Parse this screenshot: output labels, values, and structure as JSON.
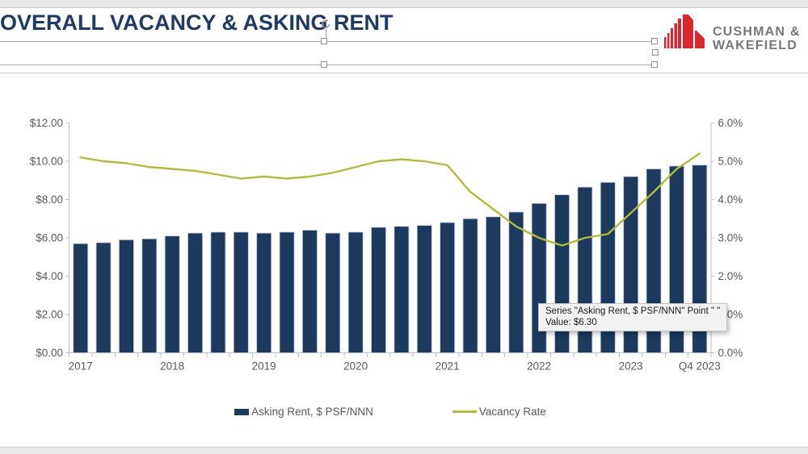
{
  "title": "OVERALL VACANCY & ASKING RENT",
  "logo": {
    "line1": "CUSHMAN &",
    "line2": "WAKEFIELD"
  },
  "tooltip": {
    "line1": "Series \"Asking Rent, $ PSF/NNN\" Point \" \"",
    "line2": "Value: $6.30"
  },
  "legend": {
    "items": [
      {
        "label": "Asking Rent, $ PSF/NNN",
        "swatch": "bar"
      },
      {
        "label": "Vacancy Rate",
        "swatch": "line"
      }
    ]
  },
  "colors": {
    "bar": "#1C3A5E",
    "bar_edge": "#bcc7d6",
    "line": "#B2BC35",
    "title": "#1F3A63",
    "logo_red": "#D7282F",
    "logo_gray": "#76777A",
    "axis_text": "#595959",
    "axis_line": "#bfbfbf"
  },
  "chart_data": {
    "type": "bar+line",
    "categories": [
      "2017 Q1",
      "2017 Q2",
      "2017 Q3",
      "2017 Q4",
      "2018 Q1",
      "2018 Q2",
      "2018 Q3",
      "2018 Q4",
      "2019 Q1",
      "2019 Q2",
      "2019 Q3",
      "2019 Q4",
      "2020 Q1",
      "2020 Q2",
      "2020 Q3",
      "2020 Q4",
      "2021 Q1",
      "2021 Q2",
      "2021 Q3",
      "2021 Q4",
      "2022 Q1",
      "2022 Q2",
      "2022 Q3",
      "2022 Q4",
      "2023 Q1",
      "2023 Q2",
      "2023 Q3",
      "2023 Q4"
    ],
    "series": [
      {
        "name": "Asking Rent, $ PSF/NNN",
        "type": "bar",
        "axis": "left",
        "color": "#1C3A5E",
        "values": [
          5.7,
          5.75,
          5.9,
          5.95,
          6.1,
          6.25,
          6.3,
          6.3,
          6.25,
          6.3,
          6.4,
          6.25,
          6.3,
          6.55,
          6.6,
          6.65,
          6.8,
          7.0,
          7.1,
          7.35,
          7.8,
          8.25,
          8.65,
          8.9,
          9.2,
          9.6,
          9.75,
          9.8
        ]
      },
      {
        "name": "Vacancy Rate",
        "type": "line",
        "axis": "right",
        "color": "#B2BC35",
        "values": [
          5.1,
          5.0,
          4.95,
          4.85,
          4.8,
          4.75,
          4.65,
          4.55,
          4.6,
          4.55,
          4.6,
          4.7,
          4.85,
          5.0,
          5.05,
          5.0,
          4.9,
          4.2,
          3.75,
          3.3,
          3.0,
          2.8,
          3.0,
          3.1,
          3.65,
          4.2,
          4.8,
          5.2
        ]
      }
    ],
    "left_axis": {
      "ticks": [
        "$12.00",
        "$10.00",
        "$8.00",
        "$6.00",
        "$4.00",
        "$2.00",
        "$0.00"
      ],
      "min": 0,
      "max": 12
    },
    "right_axis": {
      "ticks": [
        "6.0%",
        "5.0%",
        "4.0%",
        "3.0%",
        "2.0%",
        "1.0%",
        "0.0%"
      ],
      "min": 0,
      "max": 6
    },
    "x_axis_labels": [
      "2017",
      "2018",
      "2019",
      "2020",
      "2021",
      "2022",
      "2023",
      "Q4 2023"
    ],
    "x_label_indices": [
      0,
      4,
      8,
      12,
      16,
      20,
      24,
      27
    ],
    "grid": false,
    "legend_position": "bottom"
  }
}
